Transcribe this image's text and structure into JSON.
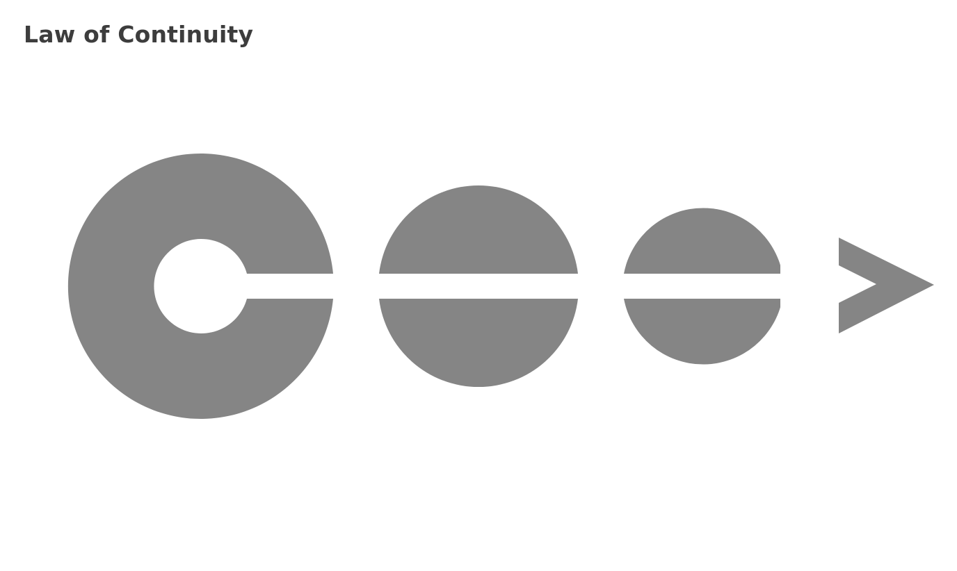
{
  "title": "Law of Continuity",
  "colors": {
    "background": "#ffffff",
    "shape_fill": "#858585",
    "title_text": "#3d3d3d"
  },
  "shapes": [
    {
      "name": "ring-shape",
      "kind": "ring with gap"
    },
    {
      "name": "split-circle-large",
      "kind": "circle split by horizontal line"
    },
    {
      "name": "split-circle-small",
      "kind": "circle split by horizontal line, clipped right"
    },
    {
      "name": "arrowhead",
      "kind": "chevron arrowhead"
    }
  ]
}
